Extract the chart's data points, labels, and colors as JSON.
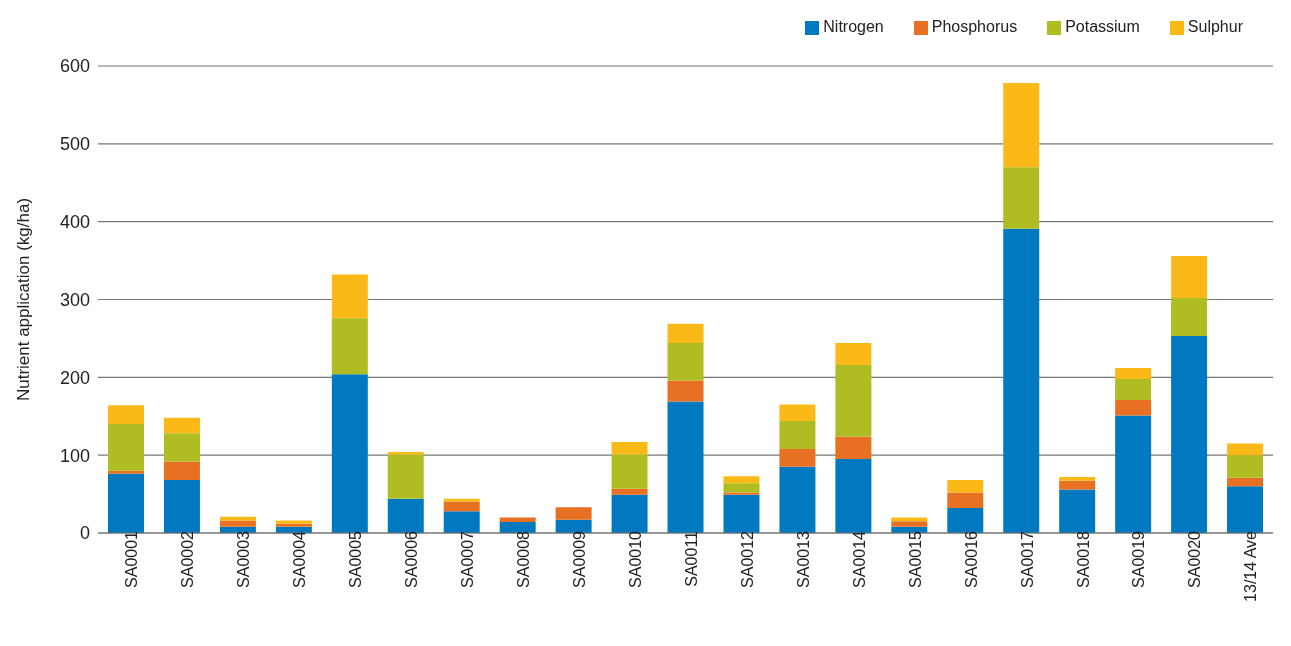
{
  "chart_data": {
    "type": "bar",
    "ylabel": "Nutrient application (kg/ha)",
    "stacked": true,
    "legend": "top right",
    "grid": "y",
    "ylim": [
      0,
      600
    ],
    "yticks": [
      0,
      100,
      200,
      300,
      400,
      500,
      600
    ],
    "categories": [
      "SA0001",
      "SA0002",
      "SA0003",
      "SA0004",
      "SA0005",
      "SA0006",
      "SA0007",
      "SA0008",
      "SA0009",
      "SA0010",
      "SA0011",
      "SA0012",
      "SA0013",
      "SA0014",
      "SA0015",
      "SA0016",
      "SA0017",
      "SA0018",
      "SA0019",
      "SA0020",
      "13/14 Ave"
    ],
    "series": [
      {
        "name": "Nitrogen",
        "color": "#0079c1",
        "values": [
          76,
          68,
          8,
          8,
          204,
          44,
          28,
          14,
          17,
          49,
          169,
          49,
          85,
          95,
          8,
          32,
          391,
          56,
          151,
          253,
          60
        ]
      },
      {
        "name": "Phosphorus",
        "color": "#e87022",
        "values": [
          4,
          24,
          8,
          4,
          0,
          0,
          12,
          6,
          16,
          8,
          27,
          3,
          23,
          29,
          7,
          20,
          0,
          11,
          20,
          0,
          11
        ]
      },
      {
        "name": "Potassium",
        "color": "#afbd22",
        "values": [
          60,
          36,
          0,
          0,
          72,
          57,
          0,
          0,
          0,
          44,
          48,
          12,
          36,
          92,
          0,
          0,
          79,
          0,
          27,
          49,
          29
        ]
      },
      {
        "name": "Sulphur",
        "color": "#fbb917",
        "values": [
          24,
          20,
          5,
          4,
          56,
          3,
          4,
          0,
          0,
          16,
          25,
          9,
          21,
          28,
          5,
          16,
          108,
          5,
          14,
          54,
          15
        ]
      }
    ]
  }
}
